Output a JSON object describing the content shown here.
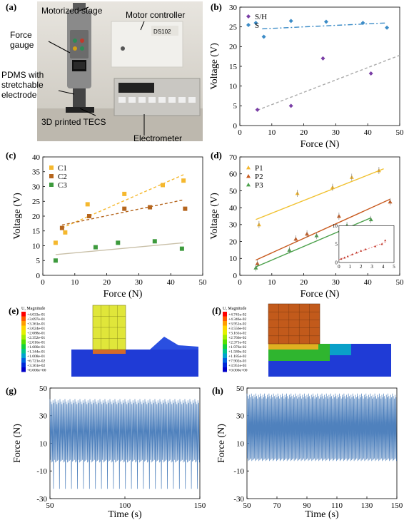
{
  "panels": {
    "a": "(a)",
    "b": "(b)",
    "c": "(c)",
    "d": "(d)",
    "e": "(e)",
    "f": "(f)",
    "g": "(g)",
    "h": "(h)"
  },
  "photo": {
    "labels": {
      "stage": "Motorized stage",
      "gauge": "Force\ngauge",
      "pdms": "PDMS with\nstretchable\nelectrode",
      "tecs": "3D printed TECS",
      "controller": "Motor controller",
      "electrometer": "Electrometer",
      "device": "DS102"
    }
  },
  "colors": {
    "sh": "#7a3fa6",
    "s": "#3c8cc7",
    "c1": "#f5b82e",
    "c2": "#b5651d",
    "c3": "#3d9a3d",
    "c3line": "#c9c0a8",
    "p1": "#f5b82e",
    "p2": "#c85a1e",
    "p3": "#4aa04a",
    "p1line": "#f1c232",
    "signal": "#4f81bd"
  },
  "chart_data": [
    {
      "id": "b",
      "type": "scatter",
      "xlabel": "Force (N)",
      "ylabel": "Voltage (V)",
      "xlim": [
        0,
        50
      ],
      "ylim": [
        0,
        30
      ],
      "xticks": [
        0,
        10,
        20,
        30,
        40,
        50
      ],
      "yticks": [
        0,
        5,
        10,
        15,
        20,
        25,
        30
      ],
      "legend_position": "top-left",
      "series": [
        {
          "name": "S/H",
          "marker": "diamond",
          "color": "#7a3fa6",
          "points": [
            [
              5.5,
              4.0
            ],
            [
              16.0,
              5.0
            ],
            [
              26.0,
              17.0
            ],
            [
              41.0,
              13.2
            ]
          ],
          "fit": [
            [
              5.5,
              3.9
            ],
            [
              50,
              17.8
            ]
          ],
          "fit_style": "dashed-gray"
        },
        {
          "name": "S",
          "marker": "diamond",
          "color": "#3c8cc7",
          "points": [
            [
              5.0,
              26.0
            ],
            [
              7.5,
              22.5
            ],
            [
              16.0,
              26.5
            ],
            [
              27.0,
              26.3
            ],
            [
              38.5,
              26.0
            ],
            [
              46.0,
              24.8
            ]
          ],
          "fit": [
            [
              7.0,
              24.5
            ],
            [
              46.0,
              26.0
            ]
          ],
          "fit_style": "dashdot-blue"
        }
      ]
    },
    {
      "id": "c",
      "type": "scatter",
      "xlabel": "Force (N)",
      "ylabel": "Voltage (V)",
      "xlim": [
        0,
        50
      ],
      "ylim": [
        0,
        40
      ],
      "xticks": [
        0,
        10,
        20,
        30,
        40,
        50
      ],
      "yticks": [
        0,
        5,
        10,
        15,
        20,
        25,
        30,
        35,
        40
      ],
      "legend_position": "top-left",
      "series": [
        {
          "name": "C1",
          "marker": "square",
          "color": "#f5b82e",
          "points": [
            [
              4.0,
              11.0
            ],
            [
              7.0,
              14.5
            ],
            [
              14.0,
              24.0
            ],
            [
              25.5,
              27.5
            ],
            [
              37.5,
              30.5
            ],
            [
              44.0,
              32.0
            ]
          ],
          "fit": [
            [
              6,
              16
            ],
            [
              44,
              34
            ]
          ],
          "fit_style": "dashed"
        },
        {
          "name": "C2",
          "marker": "square",
          "color": "#b5651d",
          "points": [
            [
              6.0,
              16.0
            ],
            [
              14.5,
              20.0
            ],
            [
              25.5,
              22.5
            ],
            [
              33.5,
              23.0
            ],
            [
              44.5,
              22.5
            ]
          ],
          "fit": [
            [
              6,
              17
            ],
            [
              44,
              25.5
            ]
          ],
          "fit_style": "dashed"
        },
        {
          "name": "C3",
          "marker": "square",
          "color": "#3d9a3d",
          "points": [
            [
              4.0,
              5.0
            ],
            [
              16.5,
              9.5
            ],
            [
              23.5,
              11.0
            ],
            [
              35.0,
              11.5
            ],
            [
              43.5,
              9.0
            ]
          ],
          "fit": [
            [
              4,
              7
            ],
            [
              44,
              11
            ]
          ],
          "fit_style": "solid-light"
        }
      ]
    },
    {
      "id": "d",
      "type": "scatter",
      "xlabel": "Force (N)",
      "ylabel": "Voltage (V)",
      "xlim": [
        0,
        50
      ],
      "ylim": [
        0,
        70
      ],
      "xticks": [
        0,
        10,
        20,
        30,
        40,
        50
      ],
      "yticks": [
        0,
        10,
        20,
        30,
        40,
        50,
        60,
        70
      ],
      "legend_position": "top-left",
      "series": [
        {
          "name": "P1",
          "marker": "triangle",
          "color": "#f5b82e",
          "points": [
            [
              6.0,
              30.0
            ],
            [
              18.0,
              48.5
            ],
            [
              29.0,
              52.0
            ],
            [
              35.0,
              58.0
            ],
            [
              43.5,
              62.0
            ]
          ],
          "fit": [
            [
              5,
              33
            ],
            [
              45,
              63
            ]
          ],
          "fit_style": "solid"
        },
        {
          "name": "P2",
          "marker": "triangle",
          "color": "#c85a1e",
          "points": [
            [
              5.5,
              7.0
            ],
            [
              17.5,
              21.5
            ],
            [
              21.0,
              24.5
            ],
            [
              31.0,
              35.0
            ],
            [
              47.0,
              43.5
            ]
          ],
          "fit": [
            [
              5,
              9
            ],
            [
              47,
              45
            ]
          ],
          "fit_style": "solid"
        },
        {
          "name": "P3",
          "marker": "triangle",
          "color": "#4aa04a",
          "points": [
            [
              5.0,
              4.5
            ],
            [
              15.5,
              15.0
            ],
            [
              24.0,
              23.5
            ],
            [
              33.5,
              29.5
            ],
            [
              41.0,
              33.0
            ]
          ],
          "fit": [
            [
              5,
              5
            ],
            [
              41,
              34
            ]
          ],
          "fit_style": "solid"
        }
      ],
      "inset": {
        "xlim": [
          0,
          5
        ],
        "ylim": [
          0,
          10
        ],
        "xticks": [
          0,
          1,
          2,
          3,
          4,
          5
        ],
        "yticks": [
          0,
          5,
          10
        ],
        "points": [
          [
            0.2,
            1.0
          ],
          [
            0.5,
            1.3
          ],
          [
            0.8,
            1.7
          ],
          [
            1.2,
            2.2
          ],
          [
            1.6,
            2.7
          ],
          [
            2.0,
            3.2
          ],
          [
            2.4,
            3.6
          ],
          [
            3.3,
            4.4
          ],
          [
            3.9,
            5.0
          ],
          [
            4.2,
            6.0
          ]
        ],
        "fit": [
          [
            0,
            0.8
          ],
          [
            4.3,
            5.6
          ]
        ]
      }
    },
    {
      "id": "g",
      "type": "line",
      "xlabel": "Time (s)",
      "ylabel": "Force (N)",
      "xlim": [
        50,
        150
      ],
      "ylim": [
        -30,
        50
      ],
      "xticks": [
        50,
        100,
        150
      ],
      "yticks": [
        -30,
        -10,
        10,
        30,
        50
      ],
      "signal": {
        "high": 42,
        "low": -2,
        "dip_min": -26,
        "dip_every_cycles": 6,
        "cycles": 150
      }
    },
    {
      "id": "h",
      "type": "line",
      "xlabel": "Time (s)",
      "ylabel": "Force (N)",
      "xlim": [
        50,
        150
      ],
      "ylim": [
        -30,
        50
      ],
      "xticks": [
        50,
        70,
        90,
        110,
        130,
        150
      ],
      "yticks": [
        -30,
        -10,
        10,
        30,
        50
      ],
      "signal": {
        "high": 46,
        "low": -1,
        "dip_min": -3,
        "dip_every_cycles": 0,
        "cycles": 170
      }
    }
  ],
  "fem": {
    "e": {
      "title": "U, Magnitude",
      "values": [
        "+4.033e-01",
        "+3.697e-01",
        "+3.361e-01",
        "+3.024e-01",
        "+2.688e-01",
        "+2.352e-01",
        "+2.016e-01",
        "+1.680e-01",
        "+1.344e-01",
        "+1.008e-01",
        "+6.721e-02",
        "+3.361e-02",
        "+0.000e+00"
      ]
    },
    "f": {
      "title": "U, Magnitude",
      "values": [
        "+4.741e-02",
        "+4.346e-02",
        "+3.951e-02",
        "+3.556e-02",
        "+3.161e-02",
        "+2.766e-02",
        "+2.371e-02",
        "+1.976e-02",
        "+1.580e-02",
        "+1.185e-02",
        "+7.902e-03",
        "+3.951e-03",
        "+0.000e+00"
      ]
    },
    "legend_colors": [
      "#ff0000",
      "#ff5a00",
      "#ff9e00",
      "#ffd500",
      "#e3f000",
      "#a2ee00",
      "#55e000",
      "#12d23c",
      "#00c48c",
      "#00a2cf",
      "#0062e0",
      "#0028d9",
      "#0000c8"
    ]
  }
}
